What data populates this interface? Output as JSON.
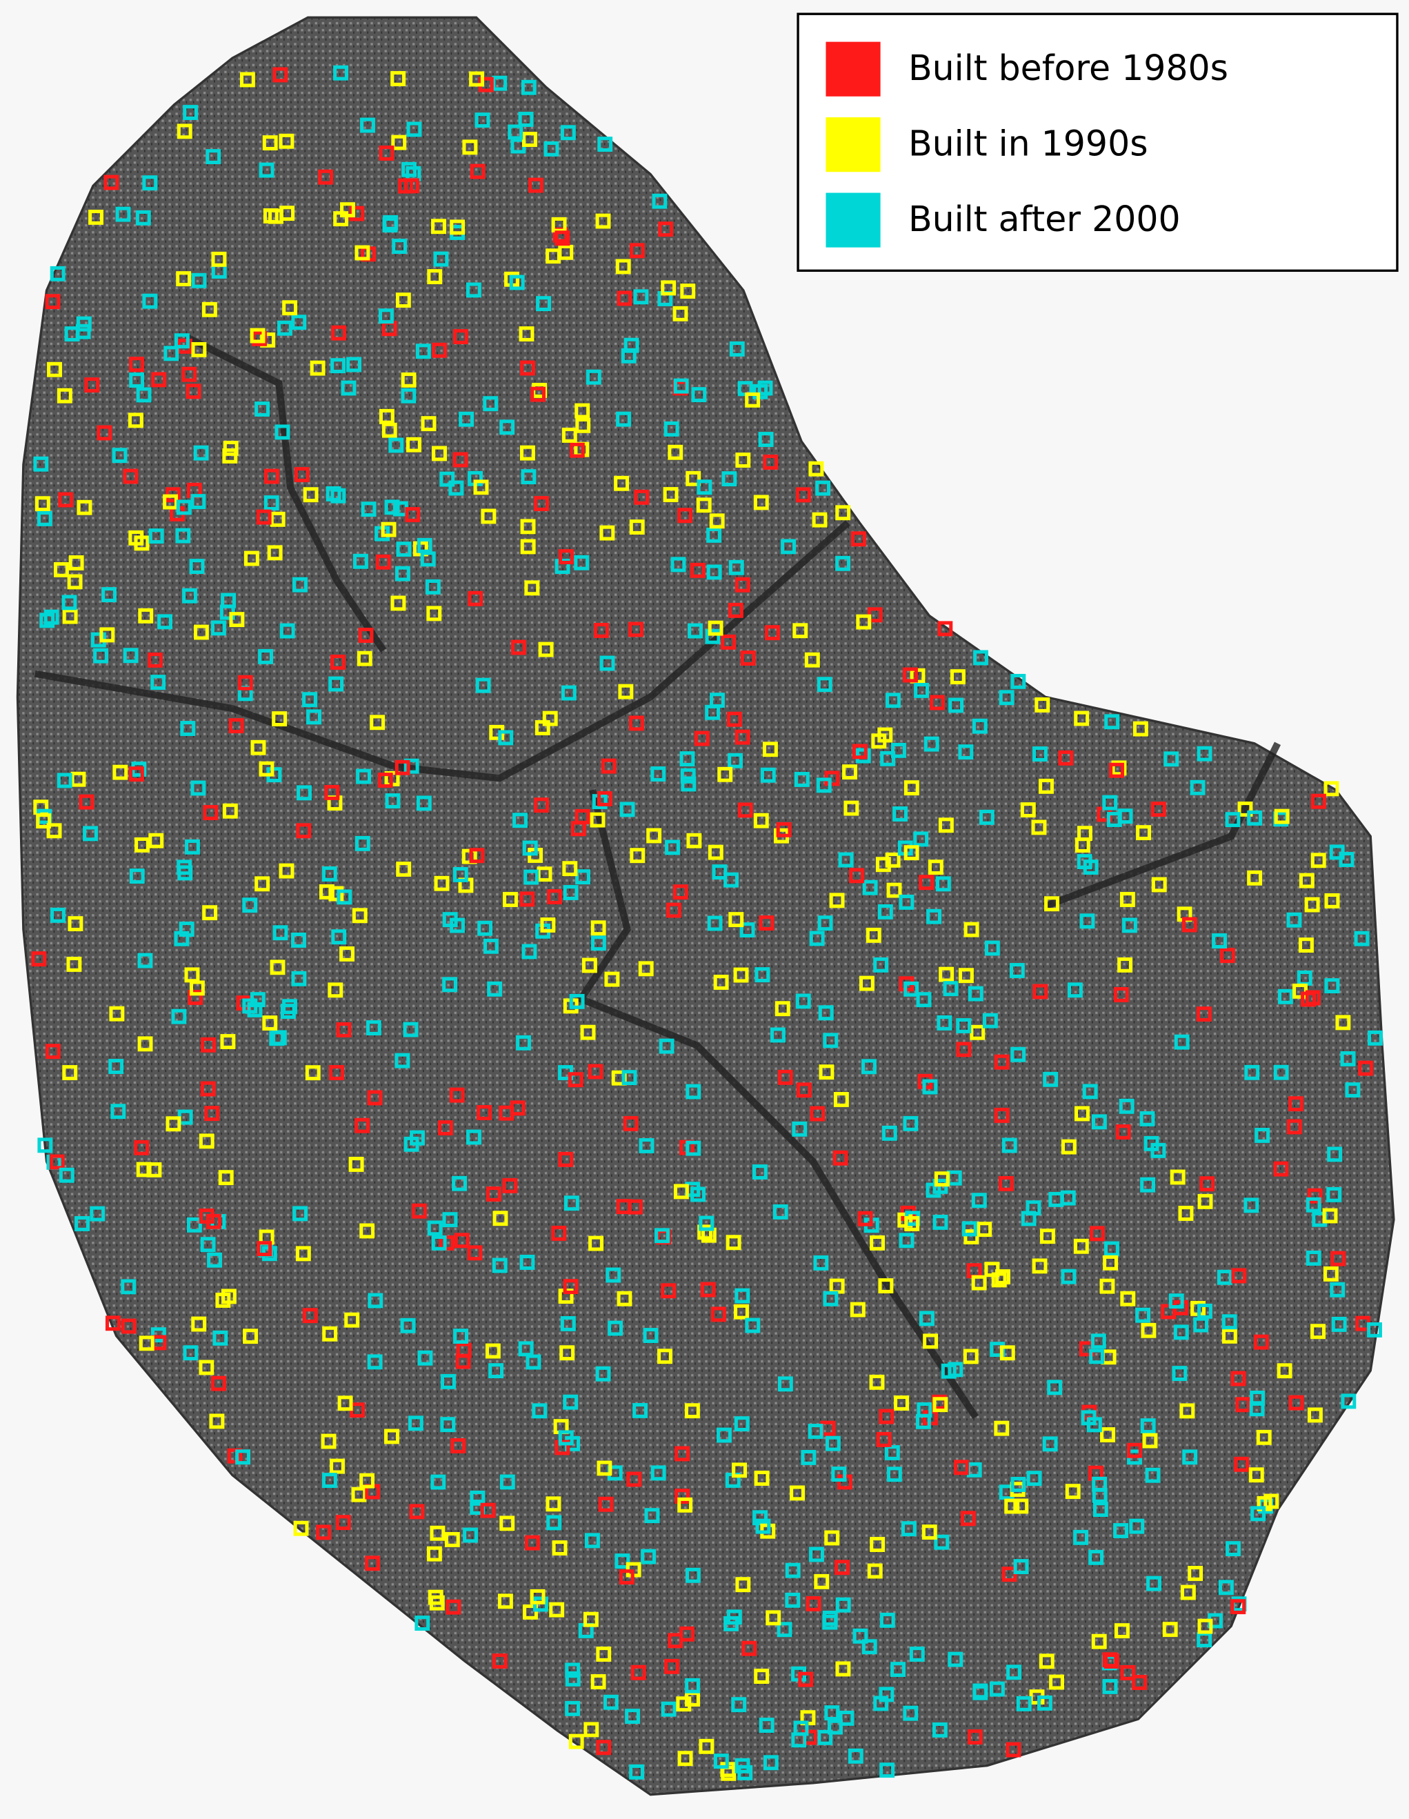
{
  "legend": {
    "items": [
      {
        "label": "Built before 1980s",
        "color": "#ff1a1a"
      },
      {
        "label": "Built in 1990s",
        "color": "#ffff00"
      },
      {
        "label": "Built after 2000",
        "color": "#00d6d6"
      }
    ]
  }
}
